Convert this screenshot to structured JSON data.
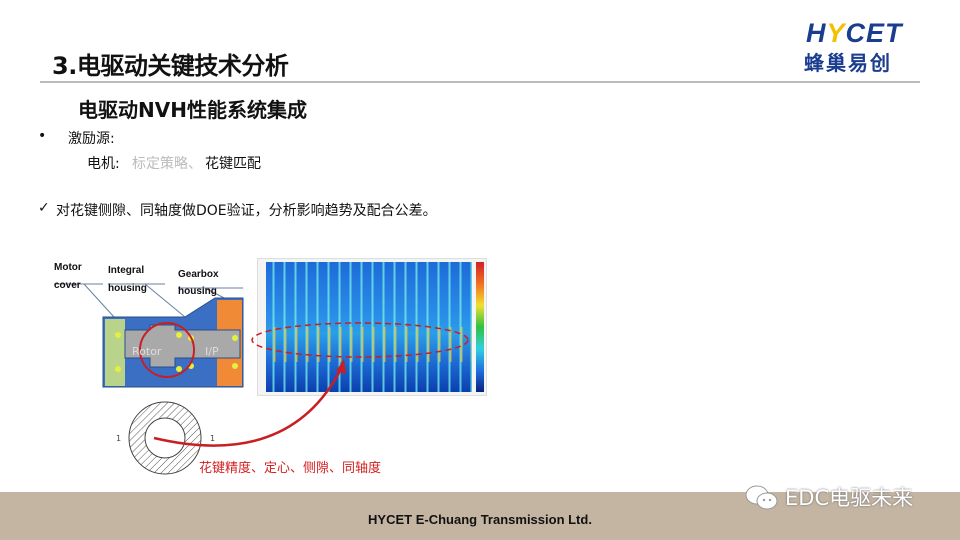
{
  "header": {
    "title": "3.电驱动关键技术分析",
    "subtitle": "电驱动NVH性能系统集成"
  },
  "logo": {
    "en_prefix": "H",
    "en_y": "Y",
    "en_suffix": "CET",
    "cn": "蜂巢易创"
  },
  "content": {
    "bullet_symbol": "•",
    "line1": "激励源:",
    "line2_label": "电机:",
    "line2_grey": "标定策略、",
    "line2_main": "花键匹配",
    "check_symbol": "✓",
    "line3": "对花键侧隙、同轴度做DOE验证，分析影响趋势及配合公差。"
  },
  "diagram": {
    "labels": {
      "motor_cover_1": "Motor",
      "motor_cover_2": "cover",
      "integral_1": "Integral",
      "integral_2": "housing",
      "gearbox_1": "Gearbox",
      "gearbox_2": "housing",
      "rotor": "Rotor",
      "ip": "I/P",
      "spline_mark_left": "1",
      "spline_mark_right": "1"
    },
    "caption": "花键精度、定心、侧隙、同轴度",
    "colors": {
      "housing": "#3a6fc4",
      "motor_cover": "#b9d48a",
      "gearbox": "#f08a36",
      "shaft": "#a9a9a9",
      "highlight": "#c81e24"
    }
  },
  "footer": {
    "company": "HYCET E-Chuang Transmission Ltd.",
    "watermark": "EDC电驱未来",
    "background": "#c4b5a3"
  }
}
